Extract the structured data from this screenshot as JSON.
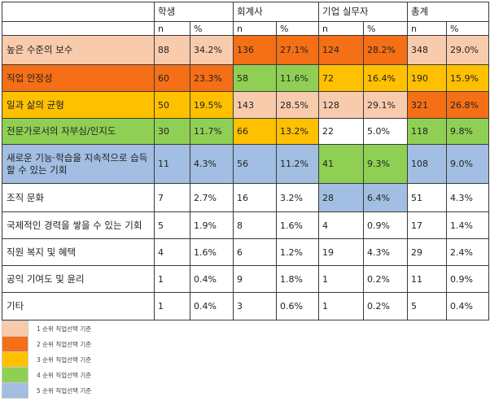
{
  "header": {
    "groups": [
      "학생",
      "회계사",
      "기업 실무자",
      "총계"
    ],
    "n_label": "n",
    "pct_label": "%"
  },
  "colors": {
    "rank1": "#F8CBAD",
    "rank2": "#F46F16",
    "rank3": "#FFC000",
    "rank4": "#8FD054",
    "rank5": "#A2BEE2",
    "none": "#FFFFFF"
  },
  "rows": [
    {
      "label": "높은 수준의 보수",
      "cells": [
        {
          "n": "88",
          "pct": "34.2%",
          "rank": 1
        },
        {
          "n": "136",
          "pct": "27.1%",
          "rank": 2
        },
        {
          "n": "124",
          "pct": "28.2%",
          "rank": 2
        },
        {
          "n": "348",
          "pct": "29.0%",
          "rank": 1
        }
      ]
    },
    {
      "label": "직업 안정성",
      "cells": [
        {
          "n": "60",
          "pct": "23.3%",
          "rank": 2
        },
        {
          "n": "58",
          "pct": "11.6%",
          "rank": 4
        },
        {
          "n": "72",
          "pct": "16.4%",
          "rank": 3
        },
        {
          "n": "190",
          "pct": "15.9%",
          "rank": 3
        }
      ]
    },
    {
      "label": "일과 삶의 균형",
      "cells": [
        {
          "n": "50",
          "pct": "19.5%",
          "rank": 3
        },
        {
          "n": "143",
          "pct": "28.5%",
          "rank": 1
        },
        {
          "n": "128",
          "pct": "29.1%",
          "rank": 1
        },
        {
          "n": "321",
          "pct": "26.8%",
          "rank": 2
        }
      ]
    },
    {
      "label": "전문가로서의 자부심/인지도",
      "cells": [
        {
          "n": "30",
          "pct": "11.7%",
          "rank": 4
        },
        {
          "n": "66",
          "pct": "13.2%",
          "rank": 3
        },
        {
          "n": "22",
          "pct": "5.0%",
          "rank": 0
        },
        {
          "n": "118",
          "pct": "9.8%",
          "rank": 4
        }
      ]
    },
    {
      "label": "새로운 기능·학습을 지속적으로 습득할 수 있는 기회",
      "cells": [
        {
          "n": "11",
          "pct": "4.3%",
          "rank": 5
        },
        {
          "n": "56",
          "pct": "11.2%",
          "rank": 5
        },
        {
          "n": "41",
          "pct": "9.3%",
          "rank": 4
        },
        {
          "n": "108",
          "pct": "9.0%",
          "rank": 5
        }
      ]
    },
    {
      "label": "조직 문화",
      "cells": [
        {
          "n": "7",
          "pct": "2.7%",
          "rank": 0
        },
        {
          "n": "16",
          "pct": "3.2%",
          "rank": 0
        },
        {
          "n": "28",
          "pct": "6.4%",
          "rank": 5
        },
        {
          "n": "51",
          "pct": "4.3%",
          "rank": 0
        }
      ]
    },
    {
      "label": "국제적인 경력을 쌓을 수 있는 기회",
      "cells": [
        {
          "n": "5",
          "pct": "1.9%",
          "rank": 0
        },
        {
          "n": "8",
          "pct": "1.6%",
          "rank": 0
        },
        {
          "n": "4",
          "pct": "0.9%",
          "rank": 0
        },
        {
          "n": "17",
          "pct": "1.4%",
          "rank": 0
        }
      ]
    },
    {
      "label": "직원 복지 및 혜택",
      "cells": [
        {
          "n": "4",
          "pct": "1.6%",
          "rank": 0
        },
        {
          "n": "6",
          "pct": "1.2%",
          "rank": 0
        },
        {
          "n": "19",
          "pct": "4.3%",
          "rank": 0
        },
        {
          "n": "29",
          "pct": "2.4%",
          "rank": 0
        }
      ]
    },
    {
      "label": "공익 기여도 및 윤리",
      "cells": [
        {
          "n": "1",
          "pct": "0.4%",
          "rank": 0
        },
        {
          "n": "9",
          "pct": "1.8%",
          "rank": 0
        },
        {
          "n": "1",
          "pct": "0.2%",
          "rank": 0
        },
        {
          "n": "11",
          "pct": "0.9%",
          "rank": 0
        }
      ]
    },
    {
      "label": "기타",
      "cells": [
        {
          "n": "1",
          "pct": "0.4%",
          "rank": 0
        },
        {
          "n": "3",
          "pct": "0.6%",
          "rank": 0
        },
        {
          "n": "1",
          "pct": "0.2%",
          "rank": 0
        },
        {
          "n": "5",
          "pct": "0.4%",
          "rank": 0
        }
      ]
    }
  ],
  "legend": [
    {
      "text": "1 순위 직업선택 기준",
      "rank": 1
    },
    {
      "text": "2 순위 직업선택 기준",
      "rank": 2
    },
    {
      "text": "3 순위 직업선택 기준",
      "rank": 3
    },
    {
      "text": "4 순위 직업선택 기준",
      "rank": 4
    },
    {
      "text": "5 순위 직업선택 기준",
      "rank": 5
    }
  ]
}
